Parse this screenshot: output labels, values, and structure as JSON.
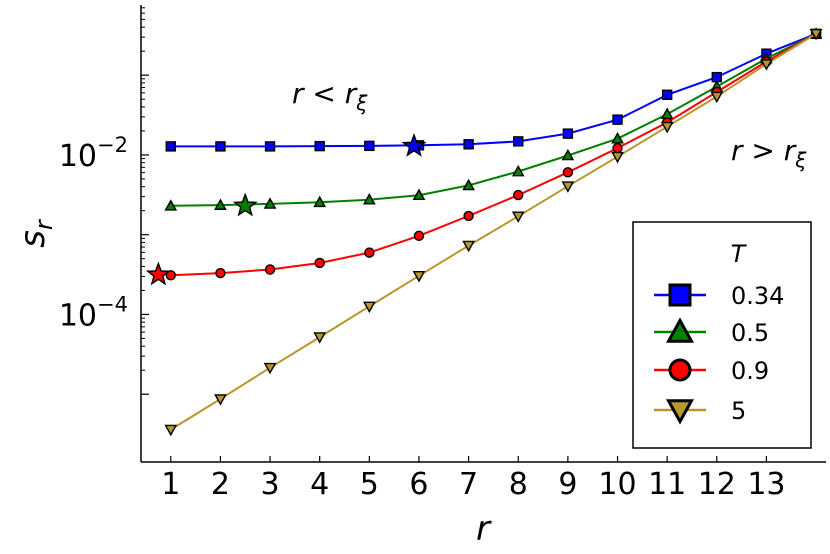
{
  "chart_data": {
    "type": "line",
    "ylabel_base": "s",
    "ylabel_sub": "r",
    "xlabel": "r",
    "yscale": "log",
    "y_ticks": [
      {
        "value": 0.01,
        "base": "10",
        "exp": "−2"
      },
      {
        "value": 0.0001,
        "base": "10",
        "exp": "−4"
      }
    ],
    "x_ticks": [
      1,
      2,
      3,
      4,
      5,
      6,
      7,
      8,
      9,
      10,
      11,
      12,
      13
    ],
    "x_tick_labels": [
      "1",
      "2",
      "3",
      "4",
      "5",
      "6",
      "7",
      "8",
      "9",
      "10",
      "11",
      "12",
      "13"
    ],
    "xlim": [
      0.4,
      14.2
    ],
    "ylim_log10": [
      -5.85,
      -0.12
    ],
    "grid": false,
    "legend": {
      "title": "T",
      "placement": "bottom-right",
      "entries": [
        "0.34",
        "0.5",
        "0.9",
        "5"
      ]
    },
    "annotations": [
      {
        "main": "r < r",
        "sub": "ξ"
      },
      {
        "main": "r > r",
        "sub": "ξ"
      }
    ],
    "series": [
      {
        "name": "0.34",
        "color": "#0000ff",
        "marker": "square",
        "x": [
          1,
          2,
          3,
          4,
          5,
          6,
          7,
          8,
          9,
          10,
          11,
          12,
          13,
          14
        ],
        "y": [
          0.0128,
          0.0128,
          0.0128,
          0.0129,
          0.013,
          0.0132,
          0.0136,
          0.0148,
          0.0185,
          0.0277,
          0.0568,
          0.0945,
          0.186,
          0.33
        ],
        "star": {
          "x": 5.9,
          "y": 0.0129
        }
      },
      {
        "name": "0.5",
        "color": "#007f00",
        "marker": "triangle-up",
        "x": [
          1,
          2,
          3,
          4,
          5,
          6,
          7,
          8,
          9,
          10,
          11,
          12,
          13,
          14
        ],
        "y": [
          0.0023,
          0.00235,
          0.00243,
          0.00255,
          0.00275,
          0.00313,
          0.00415,
          0.0062,
          0.00985,
          0.016,
          0.0325,
          0.072,
          0.162,
          0.33
        ],
        "star": {
          "x": 2.5,
          "y": 0.0023
        }
      },
      {
        "name": "0.9",
        "color": "#ff0000",
        "marker": "circle",
        "x": [
          1,
          2,
          3,
          4,
          5,
          6,
          7,
          8,
          9,
          10,
          11,
          12,
          13,
          14
        ],
        "y": [
          0.00031,
          0.00033,
          0.000366,
          0.000442,
          0.000596,
          0.000968,
          0.00172,
          0.00314,
          0.00605,
          0.0122,
          0.0256,
          0.0615,
          0.148,
          0.33
        ],
        "star": {
          "x": 0.75,
          "y": 0.000315
        }
      },
      {
        "name": "5",
        "color": "#b8962e",
        "marker": "triangle-down",
        "x": [
          1,
          2,
          3,
          4,
          5,
          6,
          7,
          8,
          9,
          10,
          11,
          12,
          13,
          14
        ],
        "y": [
          3.6e-06,
          8.7e-06,
          2.15e-05,
          5.2e-05,
          0.000126,
          0.000305,
          0.00073,
          0.0017,
          0.00405,
          0.0095,
          0.0226,
          0.054,
          0.138,
          0.33
        ]
      }
    ]
  }
}
